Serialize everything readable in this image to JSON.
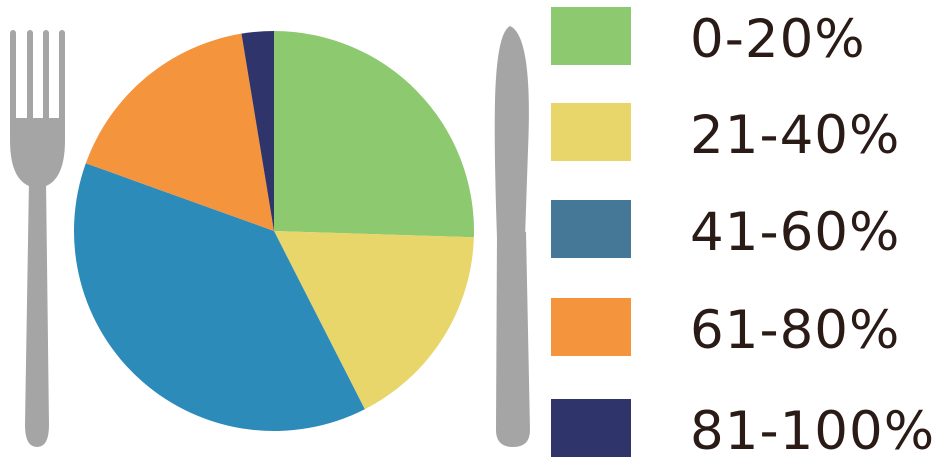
{
  "chart_data": {
    "type": "pie",
    "title": "",
    "start_angle_deg": 0,
    "direction": "clockwise",
    "legend_position": "right",
    "slices": [
      {
        "label": "0-20%",
        "value": 25.5,
        "color": "#8cc96f"
      },
      {
        "label": "21-40%",
        "value": 17.0,
        "color": "#e8d66b"
      },
      {
        "label": "41-60%",
        "value": 38.0,
        "color": "#2d8bba"
      },
      {
        "label": "61-80%",
        "value": 16.9,
        "color": "#f4943d"
      },
      {
        "label": "81-100%",
        "value": 2.6,
        "color": "#2f356b"
      }
    ],
    "legend": [
      {
        "label": "0-20%",
        "color": "#8cc96f"
      },
      {
        "label": "21-40%",
        "color": "#e8d66b"
      },
      {
        "label": "41-60%",
        "color": "#457896"
      },
      {
        "label": "61-80%",
        "color": "#f4943d"
      },
      {
        "label": "81-100%",
        "color": "#2f356b"
      }
    ]
  },
  "decor": {
    "fork_icon": "fork-icon",
    "knife_icon": "knife-icon",
    "cutlery_color": "#a5a5a5",
    "text_color": "#2b1b17"
  }
}
